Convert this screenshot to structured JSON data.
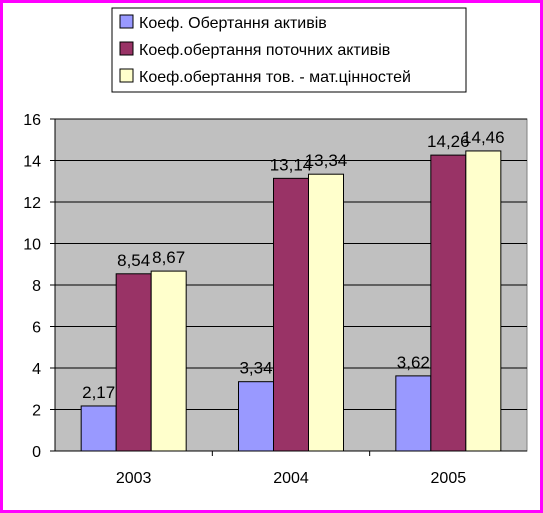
{
  "chart_data": {
    "type": "bar",
    "categories": [
      "2003",
      "2004",
      "2005"
    ],
    "series": [
      {
        "name": "Коеф. Обертання активів",
        "values": [
          2.17,
          3.34,
          3.62
        ],
        "labels": [
          "2,17",
          "3,34",
          "3,62"
        ],
        "color": "#9999ff"
      },
      {
        "name": "Коеф.обертання поточних активів",
        "values": [
          8.54,
          13.14,
          14.26
        ],
        "labels": [
          "8,54",
          "13,14",
          "14,26"
        ],
        "color": "#993366"
      },
      {
        "name": "Коеф.обертання тов. - мат.цінностей",
        "values": [
          8.67,
          13.34,
          14.46
        ],
        "labels": [
          "8,67",
          "13,34",
          "14,46"
        ],
        "color": "#ffffcc"
      }
    ],
    "ylim": [
      0,
      16
    ],
    "yticks": [
      0,
      2,
      4,
      6,
      8,
      10,
      12,
      14,
      16
    ],
    "grid": true,
    "legend_position": "top",
    "plot_background": "#c0c0c0",
    "frame_border": "#ff00ff"
  }
}
